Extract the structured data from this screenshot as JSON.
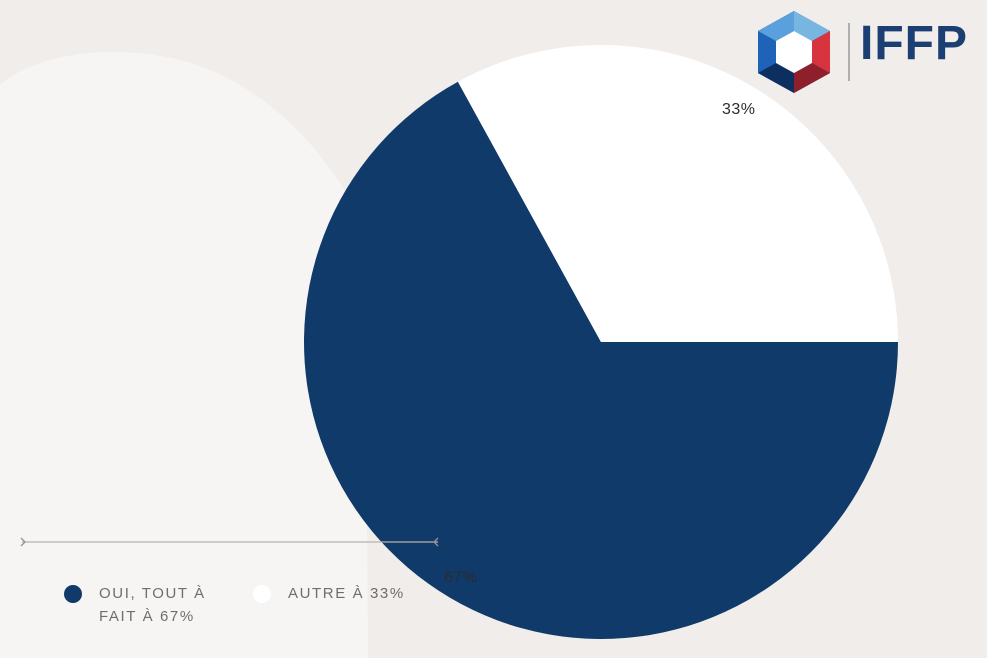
{
  "brand": {
    "logo_text": "IFFP"
  },
  "chart_data": {
    "type": "pie",
    "title": "",
    "slices": [
      {
        "label": "OUI, TOUT À FAIT À 67%",
        "value": 67,
        "data_label": "67%",
        "color": "#0f3a6a"
      },
      {
        "label": "AUTRE À 33%",
        "value": 33,
        "data_label": "33%",
        "color": "#ffffff"
      }
    ],
    "start_angle_deg": 0,
    "direction": "clockwise",
    "legend_position": "bottom-left"
  },
  "colors": {
    "background": "#f0edea",
    "panel": "#f7f5f3",
    "accent_navy": "#0f3a6a",
    "logo_blue": "#1b3f73",
    "logo_red": "#d7343f"
  }
}
